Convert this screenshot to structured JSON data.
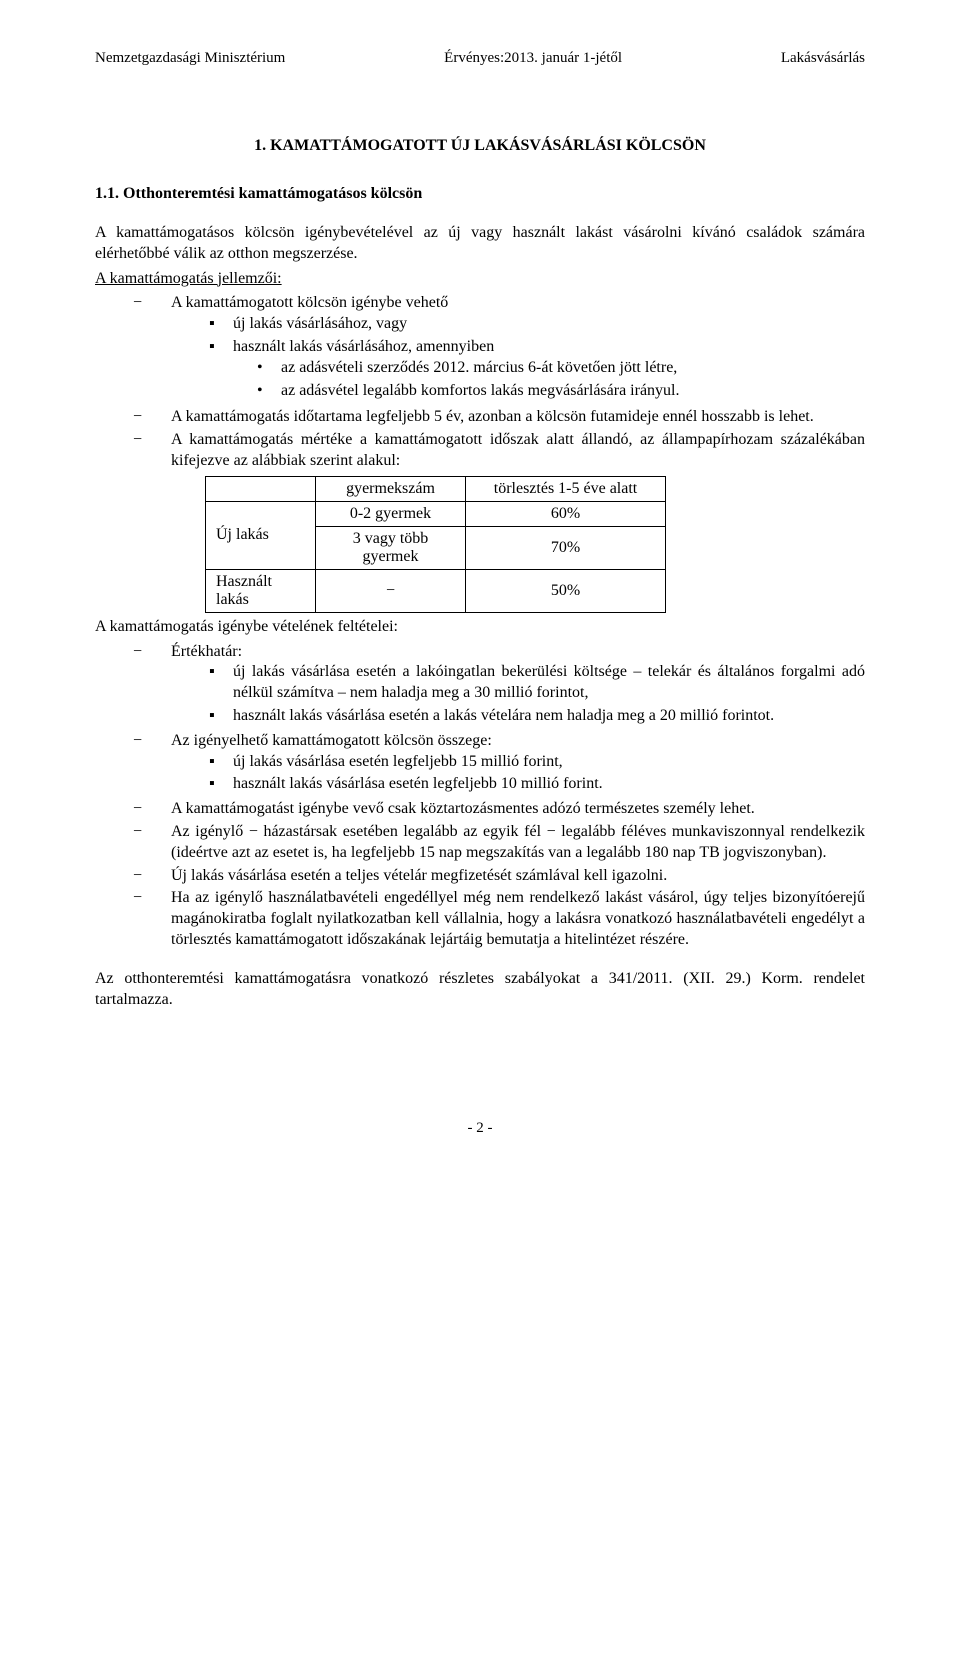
{
  "header": {
    "left": "Nemzetgazdasági Minisztérium",
    "center": "Érvényes:2013. január 1-jétől",
    "right": "Lakásvásárlás"
  },
  "title": "1. KAMATTÁMOGATOTT ÚJ LAKÁSVÁSÁRLÁSI KÖLCSÖN",
  "subtitle": "1.1. Otthonteremtési kamattámogatásos kölcsön",
  "intro": "A kamattámogatásos kölcsön igénybevételével az új vagy használt lakást vásárolni kívánó családok számára elérhetőbbé válik az otthon megszerzése.",
  "features_heading": "A kamattámogatás jellemzői:",
  "features": {
    "item1": "A kamattámogatott kölcsön igénybe vehető",
    "item1_sub1": "új lakás vásárlásához, vagy",
    "item1_sub2": "használt lakás vásárlásához, amennyiben",
    "item1_sub2_bul1": "az adásvételi szerződés 2012. március 6-át követően jött létre,",
    "item1_sub2_bul2": "az adásvétel legalább komfortos lakás megvásárlására irányul.",
    "item2": "A kamattámogatás időtartama legfeljebb 5 év, azonban a kölcsön futamideje ennél hosszabb is lehet.",
    "item3": "A kamattámogatás mértéke a kamattámogatott időszak alatt állandó, az állampapírhozam százalékában kifejezve az alábbiak szerint alakul:"
  },
  "table": {
    "header_col1": "gyermekszám",
    "header_col2": "törlesztés 1-5 éve alatt",
    "rows": [
      {
        "label": "Új lakás",
        "mid": "0-2 gyermek",
        "right": "60%"
      },
      {
        "label": "",
        "mid1": "3 vagy több",
        "mid2": "gyermek",
        "right": "70%"
      },
      {
        "label1": "Használt",
        "label2": "lakás",
        "mid": "−",
        "right": "50%"
      }
    ]
  },
  "conditions_heading": "A kamattámogatás igénybe vételének feltételei:",
  "conditions": {
    "c1": "Értékhatár:",
    "c1_sub1": "új lakás vásárlása esetén a lakóingatlan bekerülési költsége – telekár és általános forgalmi adó nélkül számítva – nem haladja meg a 30 millió forintot,",
    "c1_sub2": "használt lakás vásárlása esetén a lakás vételára nem haladja meg a 20 millió forintot.",
    "c2": "Az igényelhető kamattámogatott kölcsön összege:",
    "c2_sub1": "új lakás vásárlása esetén legfeljebb 15 millió forint,",
    "c2_sub2": "használt lakás vásárlása esetén legfeljebb 10 millió forint.",
    "c3": "A kamattámogatást igénybe vevő csak köztartozásmentes adózó természetes személy lehet.",
    "c4": "Az igénylő − házastársak esetében legalább az egyik fél − legalább féléves munkaviszonnyal rendelkezik (ideértve azt az esetet is, ha legfeljebb 15 nap megszakítás van a legalább 180 nap TB jogviszonyban).",
    "c5": "Új lakás vásárlása esetén a teljes vételár megfizetését számlával kell igazolni.",
    "c6": "Ha az igénylő használatbavételi engedéllyel még nem rendelkező lakást vásárol, úgy teljes bizonyítóerejű magánokiratba foglalt nyilatkozatban kell vállalnia, hogy a lakásra vonatkozó használatbavételi engedélyt a törlesztés kamattámogatott időszakának lejártáig bemutatja a hitelintézet részére."
  },
  "closing": "Az otthonteremtési kamattámogatásra vonatkozó részletes szabályokat a 341/2011. (XII. 29.) Korm. rendelet tartalmazza.",
  "footer": "- 2 -"
}
